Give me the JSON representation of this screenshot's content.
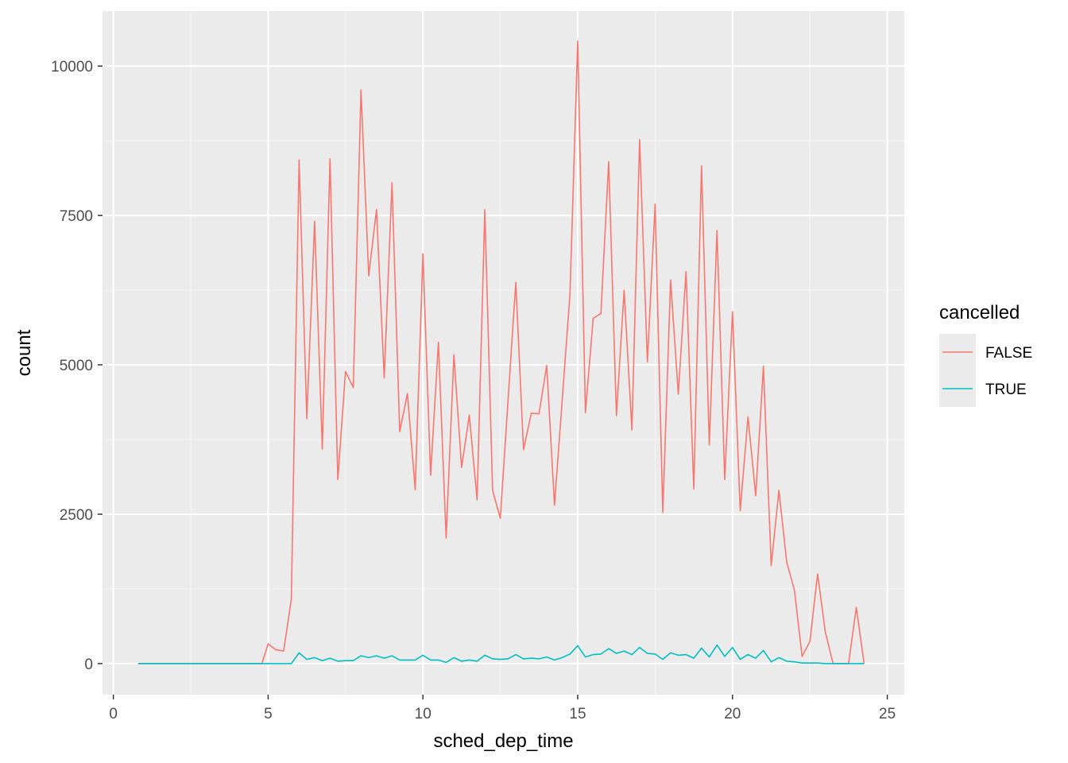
{
  "chart_data": {
    "type": "line",
    "title": "",
    "xlabel": "sched_dep_time",
    "ylabel": "count",
    "xlim": [
      -0.35,
      25.55
    ],
    "ylim": [
      -520,
      10920
    ],
    "x_ticks": [
      0,
      5,
      10,
      15,
      20,
      25
    ],
    "x_tick_labels": [
      "0",
      "5",
      "10",
      "15",
      "20",
      "25"
    ],
    "y_ticks": [
      0,
      2500,
      5000,
      7500,
      10000
    ],
    "y_tick_labels": [
      "0",
      "2500",
      "5000",
      "7500",
      "10000"
    ],
    "grid": true,
    "legend": {
      "title": "cancelled",
      "position": "right"
    },
    "series": [
      {
        "name": "FALSE",
        "color": "#F8766D",
        "points": [
          [
            0.8,
            0
          ],
          [
            1.0,
            0
          ],
          [
            2.0,
            0
          ],
          [
            3.0,
            0
          ],
          [
            4.0,
            0
          ],
          [
            4.8,
            0
          ],
          [
            5.0,
            330
          ],
          [
            5.25,
            230
          ],
          [
            5.5,
            210
          ],
          [
            5.75,
            1070
          ],
          [
            6.0,
            8430
          ],
          [
            6.25,
            4100
          ],
          [
            6.5,
            7400
          ],
          [
            6.75,
            3590
          ],
          [
            7.0,
            8450
          ],
          [
            7.25,
            3080
          ],
          [
            7.5,
            4890
          ],
          [
            7.75,
            4620
          ],
          [
            8.0,
            9600
          ],
          [
            8.25,
            6490
          ],
          [
            8.5,
            7600
          ],
          [
            8.75,
            4780
          ],
          [
            9.0,
            8050
          ],
          [
            9.25,
            3880
          ],
          [
            9.5,
            4520
          ],
          [
            9.75,
            2910
          ],
          [
            10.0,
            6860
          ],
          [
            10.25,
            3150
          ],
          [
            10.5,
            5380
          ],
          [
            10.75,
            2100
          ],
          [
            11.0,
            5170
          ],
          [
            11.25,
            3280
          ],
          [
            11.5,
            4160
          ],
          [
            11.75,
            2740
          ],
          [
            12.0,
            7600
          ],
          [
            12.25,
            2900
          ],
          [
            12.5,
            2430
          ],
          [
            13.0,
            6380
          ],
          [
            13.25,
            3580
          ],
          [
            13.5,
            4190
          ],
          [
            13.75,
            4180
          ],
          [
            14.0,
            4990
          ],
          [
            14.25,
            2650
          ],
          [
            14.75,
            6190
          ],
          [
            15.0,
            10420
          ],
          [
            15.25,
            4200
          ],
          [
            15.5,
            5780
          ],
          [
            15.75,
            5860
          ],
          [
            16.0,
            8400
          ],
          [
            16.25,
            4150
          ],
          [
            16.5,
            6250
          ],
          [
            16.75,
            3910
          ],
          [
            17.0,
            8770
          ],
          [
            17.25,
            5050
          ],
          [
            17.5,
            7690
          ],
          [
            17.75,
            2530
          ],
          [
            18.0,
            6420
          ],
          [
            18.25,
            4510
          ],
          [
            18.5,
            6560
          ],
          [
            18.75,
            2920
          ],
          [
            19.0,
            8330
          ],
          [
            19.25,
            3660
          ],
          [
            19.5,
            7250
          ],
          [
            19.75,
            3080
          ],
          [
            20.0,
            5890
          ],
          [
            20.25,
            2560
          ],
          [
            20.5,
            4130
          ],
          [
            20.75,
            2810
          ],
          [
            21.0,
            4980
          ],
          [
            21.25,
            1640
          ],
          [
            21.5,
            2900
          ],
          [
            21.75,
            1700
          ],
          [
            22.0,
            1230
          ],
          [
            22.25,
            120
          ],
          [
            22.5,
            370
          ],
          [
            22.75,
            1500
          ],
          [
            23.0,
            520
          ],
          [
            23.25,
            0
          ],
          [
            23.75,
            0
          ],
          [
            24.0,
            940
          ],
          [
            24.25,
            0
          ]
        ]
      },
      {
        "name": "TRUE",
        "color": "#00BFC4",
        "points": [
          [
            0.8,
            0
          ],
          [
            1.0,
            0
          ],
          [
            2.0,
            0
          ],
          [
            3.0,
            0
          ],
          [
            4.0,
            0
          ],
          [
            5.0,
            0
          ],
          [
            5.75,
            0
          ],
          [
            6.0,
            180
          ],
          [
            6.25,
            70
          ],
          [
            6.5,
            100
          ],
          [
            6.75,
            50
          ],
          [
            7.0,
            90
          ],
          [
            7.25,
            40
          ],
          [
            7.5,
            50
          ],
          [
            7.75,
            50
          ],
          [
            8.0,
            130
          ],
          [
            8.25,
            100
          ],
          [
            8.5,
            130
          ],
          [
            8.75,
            90
          ],
          [
            9.0,
            130
          ],
          [
            9.25,
            60
          ],
          [
            9.5,
            60
          ],
          [
            9.75,
            60
          ],
          [
            10.0,
            140
          ],
          [
            10.25,
            60
          ],
          [
            10.5,
            60
          ],
          [
            10.75,
            20
          ],
          [
            11.0,
            100
          ],
          [
            11.25,
            40
          ],
          [
            11.5,
            60
          ],
          [
            11.75,
            40
          ],
          [
            12.0,
            140
          ],
          [
            12.25,
            80
          ],
          [
            12.5,
            70
          ],
          [
            12.75,
            80
          ],
          [
            13.0,
            150
          ],
          [
            13.25,
            80
          ],
          [
            13.5,
            90
          ],
          [
            13.75,
            80
          ],
          [
            14.0,
            110
          ],
          [
            14.25,
            60
          ],
          [
            14.5,
            100
          ],
          [
            14.75,
            160
          ],
          [
            15.0,
            300
          ],
          [
            15.25,
            110
          ],
          [
            15.5,
            150
          ],
          [
            15.75,
            160
          ],
          [
            16.0,
            250
          ],
          [
            16.25,
            170
          ],
          [
            16.5,
            210
          ],
          [
            16.75,
            150
          ],
          [
            17.0,
            270
          ],
          [
            17.25,
            170
          ],
          [
            17.5,
            160
          ],
          [
            17.75,
            70
          ],
          [
            18.0,
            180
          ],
          [
            18.25,
            140
          ],
          [
            18.5,
            150
          ],
          [
            18.75,
            90
          ],
          [
            19.0,
            260
          ],
          [
            19.25,
            110
          ],
          [
            19.5,
            310
          ],
          [
            19.75,
            120
          ],
          [
            20.0,
            270
          ],
          [
            20.25,
            70
          ],
          [
            20.5,
            150
          ],
          [
            20.75,
            90
          ],
          [
            21.0,
            220
          ],
          [
            21.25,
            30
          ],
          [
            21.5,
            100
          ],
          [
            21.75,
            40
          ],
          [
            22.0,
            30
          ],
          [
            22.25,
            10
          ],
          [
            22.5,
            10
          ],
          [
            22.75,
            10
          ],
          [
            23.0,
            0
          ],
          [
            23.5,
            0
          ],
          [
            24.0,
            0
          ],
          [
            24.25,
            0
          ]
        ]
      }
    ]
  }
}
